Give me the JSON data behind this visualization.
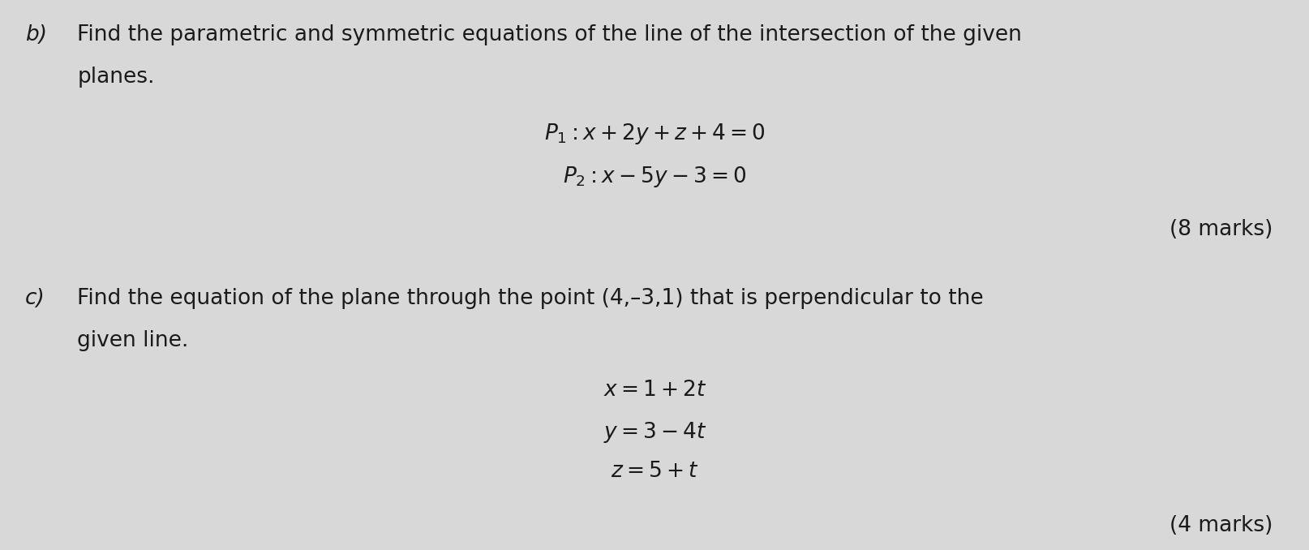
{
  "background_color": "#d8d8d8",
  "text_color": "#1a1a1a",
  "figsize": [
    16.15,
    6.78
  ],
  "dpi": 100,
  "part_b_label": "b)",
  "part_b_line1": "Find the parametric and symmetric equations of the line of the intersection of the given",
  "part_b_line2": "planes.",
  "p1_label": "$P_1$",
  "p1_eq": "$: x + 2y + z + 4 = 0$",
  "p2_label": "$P_2$",
  "p2_eq": "$: x - 5y - 3 = 0$",
  "marks_b": "(8 marks)",
  "part_c_label": "c)",
  "part_c_line1": "Find the equation of the plane through the point (4,–3,1) that is perpendicular to the",
  "part_c_line2": "given line.",
  "eq_x": "$x = 1 + 2t$",
  "eq_y": "$y = 3 - 4t$",
  "eq_z": "$z = 5 + t$",
  "marks_c": "(4 marks)",
  "body_fontsize": 19,
  "math_fontsize": 19,
  "marks_fontsize": 19
}
